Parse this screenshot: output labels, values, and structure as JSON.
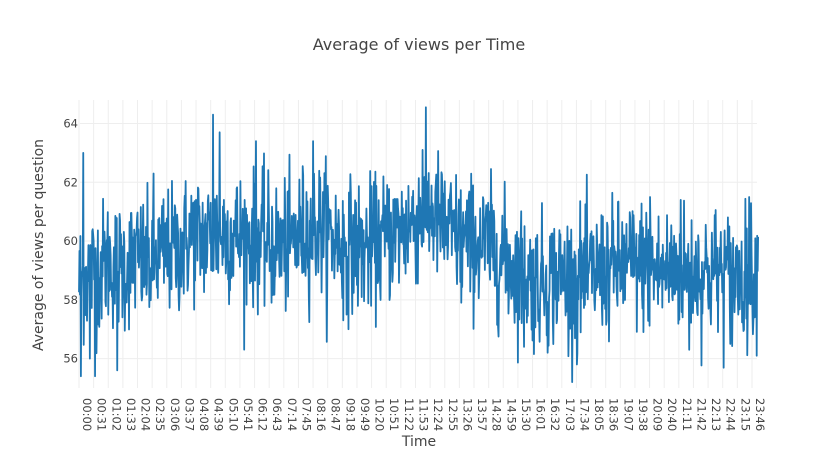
{
  "chart_data": {
    "type": "line",
    "title": "Average of views per Time",
    "xlabel": "Time",
    "ylabel": "Average of views per question",
    "ylim": [
      55,
      64.8
    ],
    "y_ticks": [
      56,
      58,
      60,
      62,
      64
    ],
    "grid": true,
    "x_tick_labels": [
      "00:00",
      "00:31",
      "01:02",
      "01:33",
      "02:04",
      "02:35",
      "03:06",
      "03:37",
      "04:08",
      "04:39",
      "05:10",
      "05:41",
      "06:12",
      "06:43",
      "07:14",
      "07:45",
      "08:16",
      "08:47",
      "09:18",
      "09:49",
      "10:20",
      "10:51",
      "11:22",
      "11:53",
      "12:24",
      "12:55",
      "13:26",
      "13:57",
      "14:28",
      "14:59",
      "15:30",
      "16:01",
      "16:32",
      "17:03",
      "17:34",
      "18:05",
      "18:36",
      "19:07",
      "19:38",
      "20:09",
      "20:40",
      "21:11",
      "21:42",
      "22:13",
      "22:44",
      "23:15",
      "23:46"
    ],
    "series": [
      {
        "color": "#1f77b4",
        "anchor_minutes": [
          0,
          30,
          60,
          90,
          120,
          150,
          180,
          210,
          240,
          270,
          300,
          330,
          360,
          390,
          420,
          450,
          480,
          510,
          540,
          570,
          600,
          630,
          660,
          690,
          720,
          750,
          780,
          810,
          840,
          870,
          900,
          930,
          960,
          990,
          1020,
          1050,
          1080,
          1110,
          1140,
          1170,
          1200,
          1230,
          1260,
          1290,
          1320,
          1350,
          1380,
          1410,
          1439
        ],
        "anchor_values": [
          58.6,
          59.0,
          59.3,
          59.1,
          59.4,
          59.2,
          59.6,
          59.7,
          60.2,
          60.1,
          60.3,
          60.2,
          60.1,
          60.0,
          59.8,
          59.9,
          60.4,
          60.5,
          60.1,
          59.9,
          59.7,
          59.9,
          60.2,
          60.4,
          60.9,
          61.0,
          60.3,
          60.1,
          59.9,
          59.8,
          59.4,
          59.0,
          58.6,
          58.7,
          58.8,
          58.7,
          58.8,
          59.0,
          59.1,
          59.2,
          59.2,
          58.9,
          59.1,
          59.0,
          58.9,
          59.0,
          58.8,
          58.8,
          59.0
        ],
        "std_dev": 1.1,
        "extrema": [
          {
            "time": "00:04",
            "value": 55.4
          },
          {
            "time": "00:09",
            "value": 63.0
          },
          {
            "time": "00:23",
            "value": 56.0
          },
          {
            "time": "00:34",
            "value": 55.4
          },
          {
            "time": "01:21",
            "value": 55.6
          },
          {
            "time": "02:38",
            "value": 62.3
          },
          {
            "time": "04:44",
            "value": 64.3
          },
          {
            "time": "04:58",
            "value": 63.7
          },
          {
            "time": "06:15",
            "value": 63.4
          },
          {
            "time": "08:16",
            "value": 63.4
          },
          {
            "time": "09:20",
            "value": 57.3
          },
          {
            "time": "12:08",
            "value": 63.1
          },
          {
            "time": "13:30",
            "value": 57.9
          },
          {
            "time": "15:43",
            "value": 56.4
          },
          {
            "time": "16:33",
            "value": 56.2
          },
          {
            "time": "17:35",
            "value": 55.8
          },
          {
            "time": "20:10",
            "value": 61.5
          },
          {
            "time": "21:15",
            "value": 61.4
          },
          {
            "time": "21:33",
            "value": 56.3
          },
          {
            "time": "23:00",
            "value": 56.5
          },
          {
            "time": "23:40",
            "value": 61.5
          }
        ]
      }
    ]
  }
}
